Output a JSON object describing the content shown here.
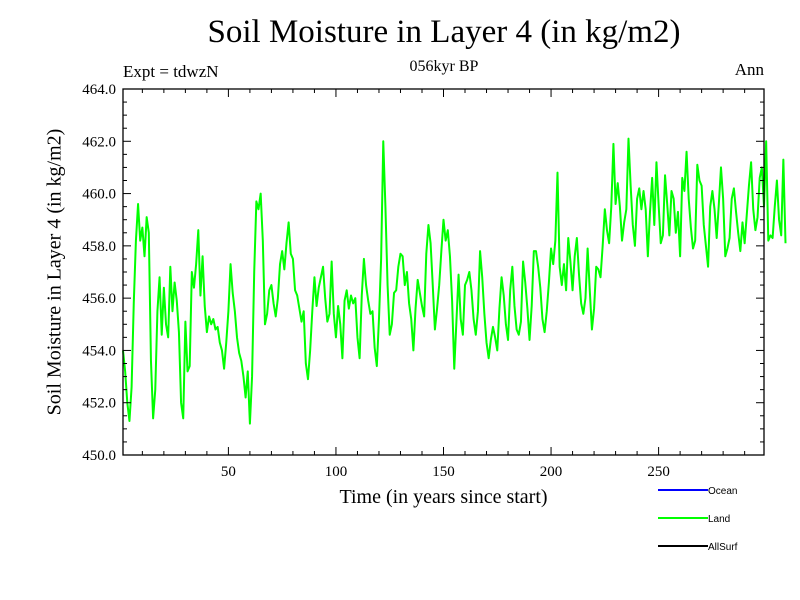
{
  "chart_data": {
    "type": "line",
    "title": "Soil Moisture in Layer 4 (in kg/m2)",
    "subtitle": "056kyr BP",
    "expt_label": "Expt = tdwzN",
    "period_label": "Ann",
    "xlabel": "Time (in years since start)",
    "ylabel": "Soil Moisture in Layer 4 (in kg/m2)",
    "xlim": [
      1,
      299
    ],
    "ylim": [
      450,
      464
    ],
    "x_ticks": [
      50,
      100,
      150,
      200,
      250
    ],
    "x_tick_labels": [
      "50",
      "100",
      "150",
      "200",
      "250"
    ],
    "y_ticks": [
      450,
      452,
      454,
      456,
      458,
      460,
      462,
      464
    ],
    "y_tick_labels": [
      "450.0",
      "452.0",
      "454.0",
      "456.0",
      "458.0",
      "460.0",
      "462.0",
      "464.0"
    ],
    "legend_placement": "bottom-right",
    "grid": false,
    "series": [
      {
        "name": "Ocean",
        "color": "#0000ff",
        "values": []
      },
      {
        "name": "Land",
        "color": "#00ff00",
        "values": [
          454.0,
          453.2,
          452.0,
          451.3,
          452.6,
          455.8,
          458.2,
          459.6,
          458.2,
          458.7,
          457.6,
          459.1,
          458.5,
          453.6,
          451.4,
          452.5,
          455.5,
          456.8,
          454.6,
          456.4,
          455.0,
          454.5,
          457.2,
          455.5,
          456.6,
          455.9,
          454.7,
          452.0,
          451.4,
          455.1,
          453.2,
          453.4,
          457.0,
          456.4,
          457.3,
          458.6,
          456.1,
          457.6,
          455.7,
          454.7,
          455.3,
          455.0,
          455.2,
          454.8,
          454.9,
          454.3,
          454.0,
          453.3,
          454.3,
          455.5,
          457.3,
          456.2,
          455.5,
          454.5,
          453.9,
          453.6,
          453.0,
          452.2,
          453.2,
          451.2,
          453.0,
          457.0,
          459.7,
          459.4,
          460.0,
          458.2,
          455.0,
          455.4,
          456.3,
          456.5,
          455.8,
          455.3,
          456.0,
          457.3,
          457.8,
          457.1,
          458.1,
          458.9,
          457.7,
          457.5,
          456.3,
          456.1,
          455.6,
          455.1,
          455.5,
          453.5,
          452.9,
          454.0,
          455.5,
          456.8,
          455.7,
          456.4,
          456.8,
          457.2,
          456.0,
          455.1,
          455.4,
          457.4,
          455.4,
          454.5,
          455.7,
          455.0,
          453.7,
          455.9,
          456.3,
          455.6,
          456.1,
          455.8,
          456.0,
          454.5,
          453.7,
          456.1,
          457.5,
          456.5,
          455.9,
          455.4,
          455.5,
          454.1,
          453.4,
          455.2,
          457.5,
          462.0,
          459.5,
          456.5,
          454.6,
          455.0,
          456.2,
          456.3,
          457.2,
          457.7,
          457.6,
          456.5,
          457.0,
          455.8,
          455.2,
          454.0,
          455.6,
          456.7,
          456.2,
          455.7,
          455.3,
          457.7,
          458.8,
          458.1,
          456.5,
          454.8,
          455.6,
          456.5,
          457.8,
          459.0,
          458.2,
          458.6,
          457.6,
          455.9,
          453.3,
          455.1,
          456.9,
          455.2,
          454.6,
          456.5,
          456.7,
          457.0,
          456.3,
          455.2,
          454.6,
          455.5,
          457.8,
          456.8,
          455.4,
          454.3,
          453.7,
          454.4,
          454.9,
          454.5,
          454.0,
          455.6,
          456.8,
          456.1,
          455.0,
          454.4,
          456.3,
          457.2,
          455.7,
          454.8,
          454.6,
          455.1,
          457.4,
          456.6,
          455.6,
          454.4,
          455.7,
          457.8,
          457.8,
          457.2,
          456.4,
          455.2,
          454.7,
          455.5,
          456.6,
          457.9,
          457.3,
          458.2,
          460.8,
          457.2,
          456.5,
          457.3,
          456.3,
          458.3,
          457.4,
          456.3,
          457.6,
          458.3,
          456.9,
          455.8,
          455.4,
          456.0,
          457.9,
          456.3,
          454.8,
          455.6,
          457.2,
          457.1,
          456.8,
          458.0,
          459.4,
          458.6,
          458.1,
          459.5,
          461.9,
          459.6,
          460.4,
          459.5,
          458.2,
          458.9,
          459.4,
          462.1,
          460.3,
          458.8,
          458.0,
          459.8,
          460.2,
          459.4,
          460.1,
          459.4,
          457.6,
          459.3,
          460.6,
          458.8,
          461.2,
          459.6,
          458.1,
          458.4,
          460.7,
          459.6,
          458.4,
          460.1,
          459.8,
          458.5,
          459.3,
          457.6,
          460.6,
          460.1,
          461.6,
          459.8,
          458.7,
          457.9,
          458.2,
          461.1,
          460.5,
          460.3,
          458.8,
          458.0,
          457.2,
          459.5,
          460.1,
          459.4,
          458.3,
          459.6,
          461.0,
          459.8,
          457.6,
          457.9,
          458.3,
          459.8,
          460.2,
          459.3,
          458.5,
          457.8,
          458.9,
          458.1,
          459.2,
          460.3,
          461.2,
          459.4,
          458.6,
          459.1,
          460.6,
          461.0,
          459.5,
          462.0,
          458.2,
          458.4,
          458.3,
          459.5,
          460.5,
          459.0,
          458.4,
          461.3,
          458.1
        ]
      },
      {
        "name": "AllSurf",
        "color": "#000000",
        "values": []
      }
    ]
  }
}
